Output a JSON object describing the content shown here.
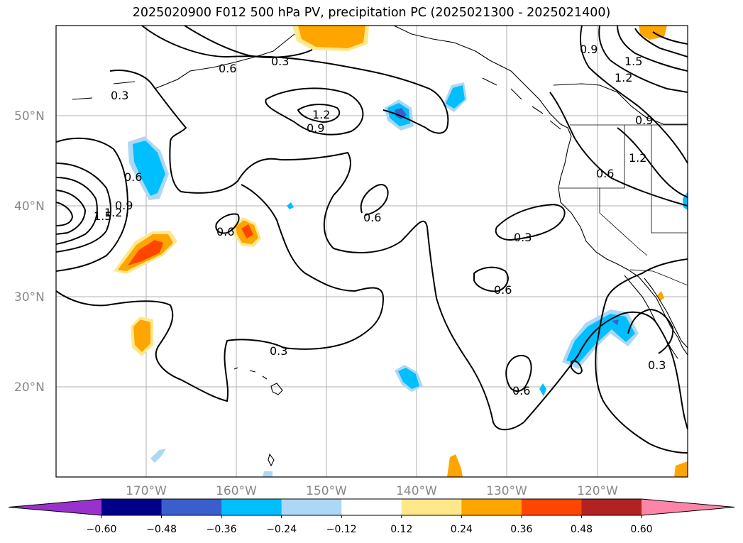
{
  "title": "2025020900 F012 500 hPa PV, precipitation PC (2025021300 - 2025021400)",
  "map": {
    "lat_labels": [
      "50°N",
      "40°N",
      "30°N",
      "20°N"
    ],
    "lon_labels": [
      "170°W",
      "160°W",
      "150°W",
      "140°W",
      "130°W",
      "120°W"
    ],
    "extent": {
      "lon_min": -180,
      "lon_max": -110,
      "lat_min": 10,
      "lat_max": 60
    },
    "grid": true,
    "contour_labels": [
      "0.3",
      "0.6",
      "0.9",
      "1.2",
      "1.5",
      "0.3",
      "0.9",
      "1.2",
      "0.6",
      "0.9",
      "1.2",
      "1.5",
      "0.6",
      "0.6",
      "0.3",
      "0.6",
      "0.3",
      "0.6",
      "0.3",
      "0.9",
      "1.2",
      "0.6"
    ]
  },
  "colorbar": {
    "ticks": [
      "−0.60",
      "−0.48",
      "−0.36",
      "−0.24",
      "−0.12",
      "0.12",
      "0.24",
      "0.36",
      "0.48",
      "0.60"
    ],
    "colors": [
      "#9932cc",
      "#00008b",
      "#3a5fcd",
      "#00bfff",
      "#add8f5",
      "#ffffff",
      "#ffe88a",
      "#ffa500",
      "#ff4500",
      "#b22222",
      "#ff85a8"
    ]
  },
  "colors": {
    "grid": "#b0b0b0",
    "contour": "#000000",
    "orange": "#ffa500",
    "red": "#ff4500",
    "yellow": "#ffe88a",
    "cyan": "#00bfff",
    "light_blue": "#add8f5",
    "blue": "#3a5fcd"
  }
}
